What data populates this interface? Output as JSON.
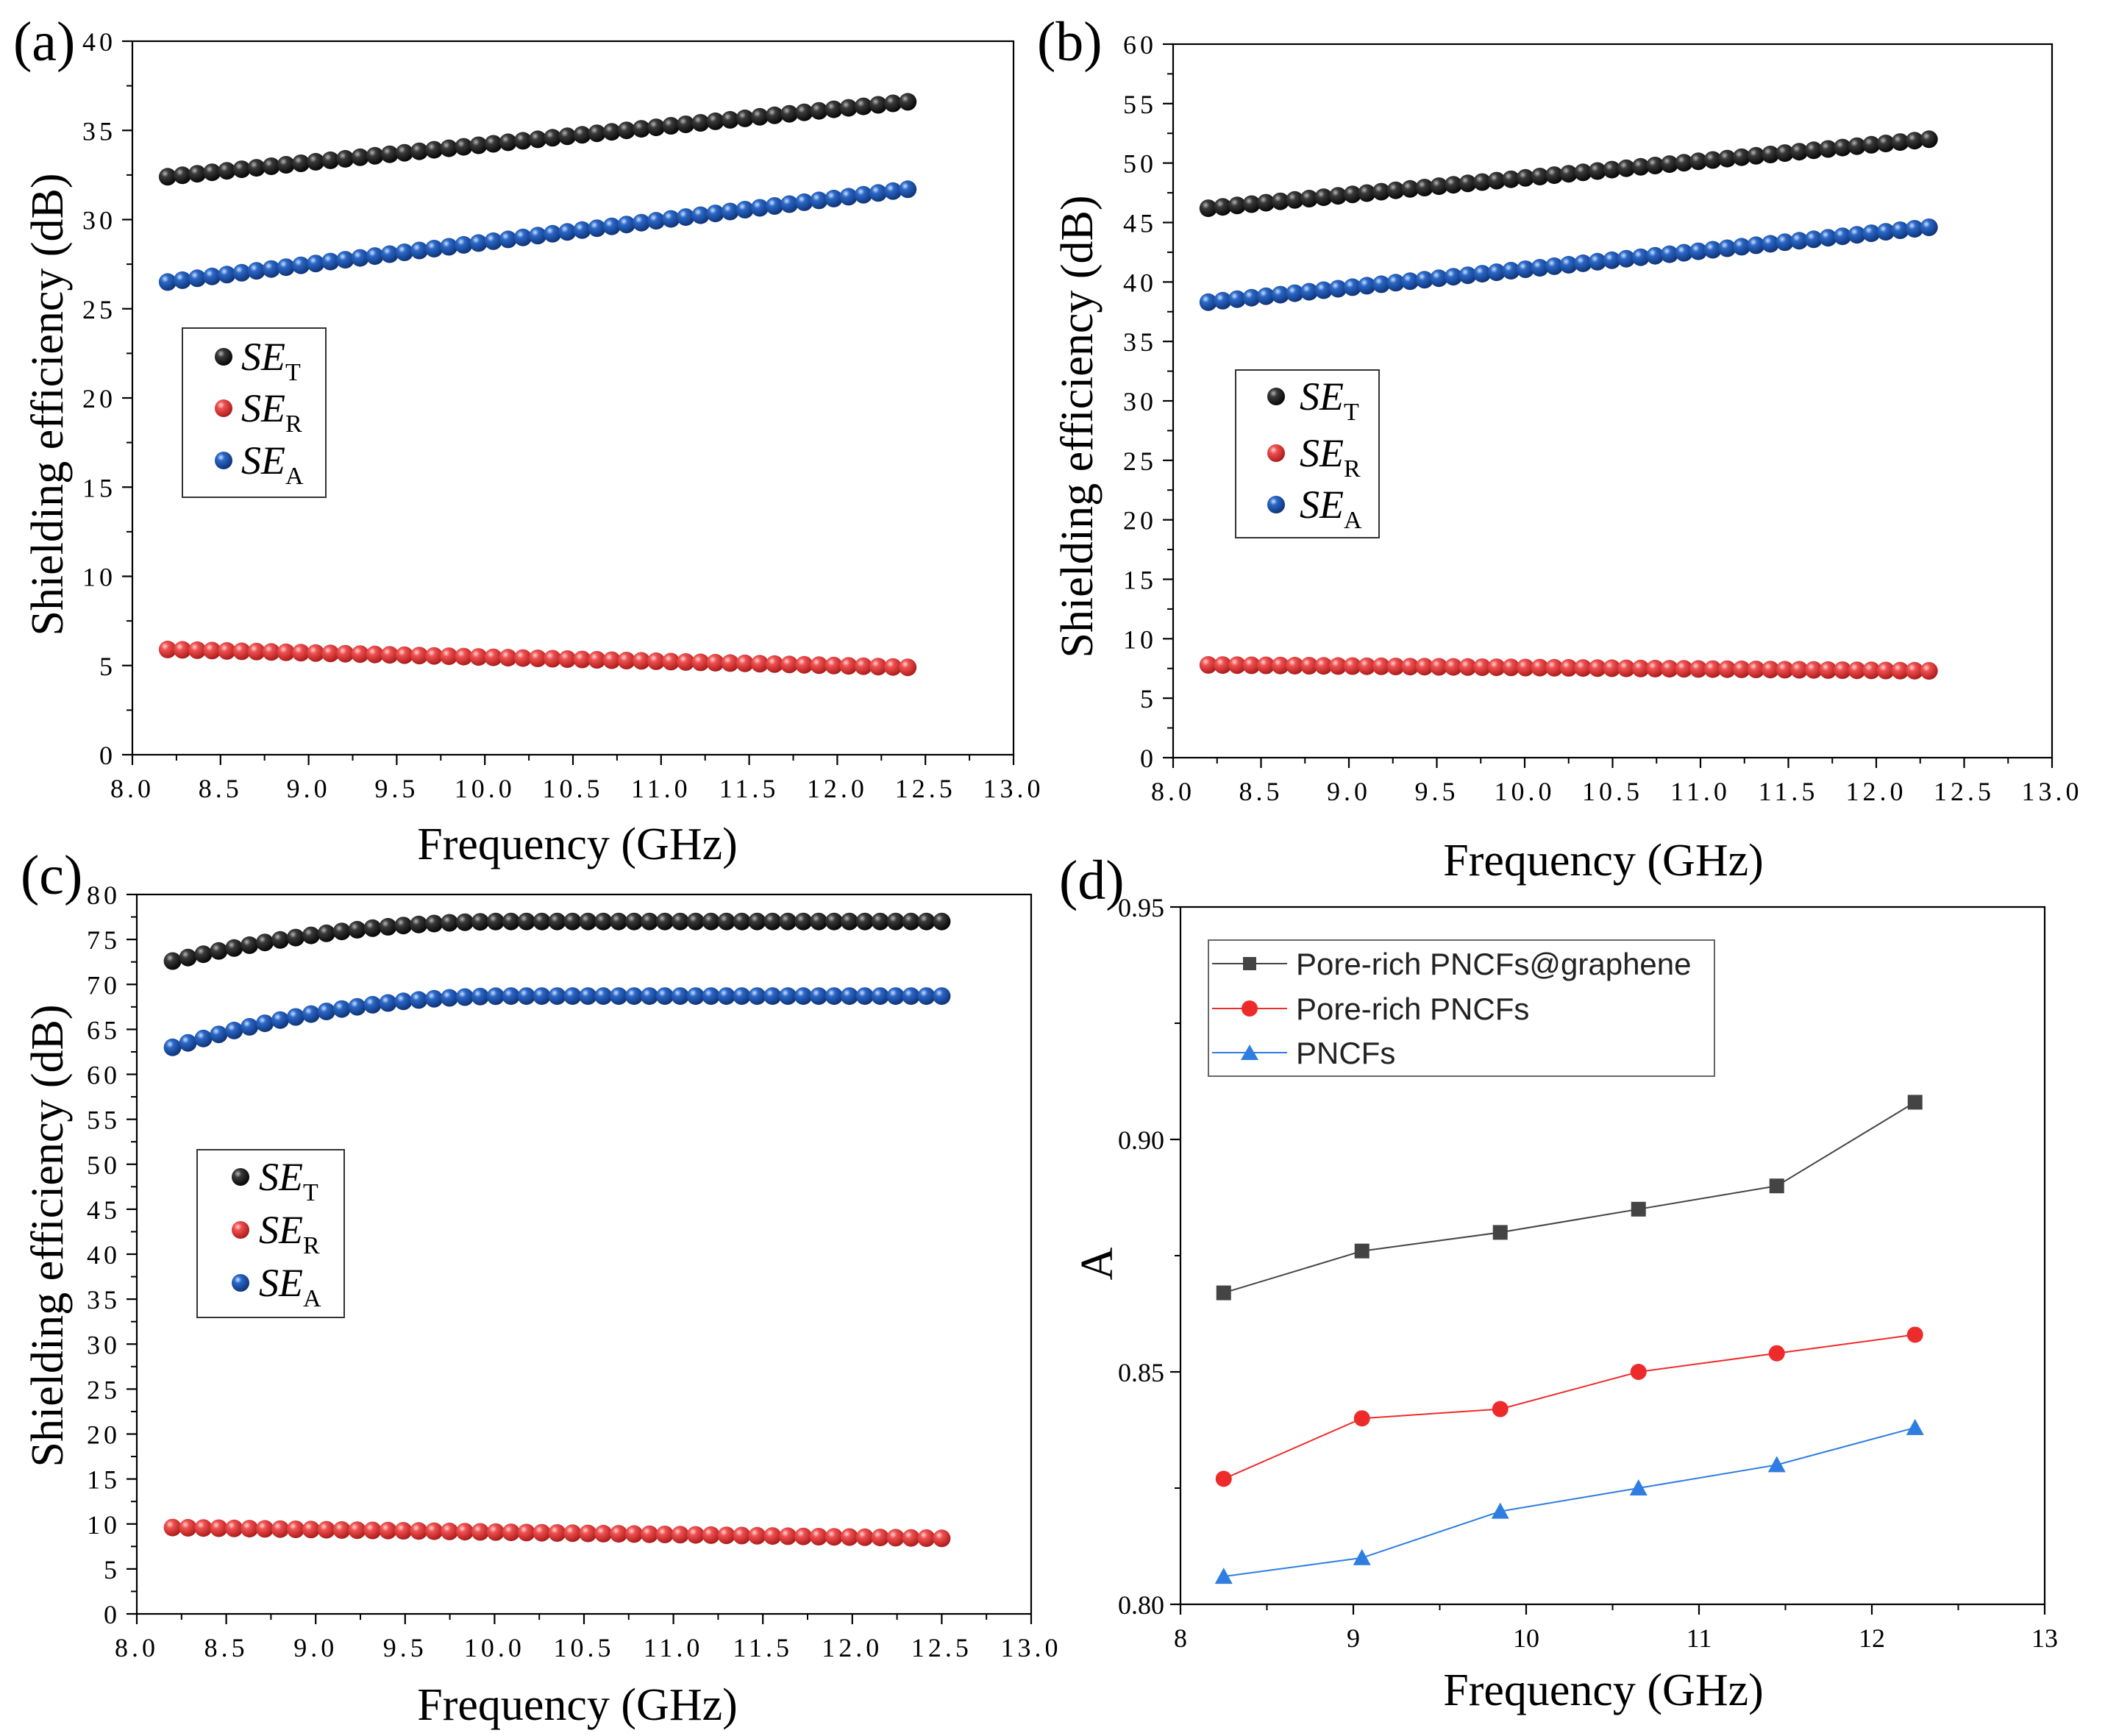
{
  "colors": {
    "se_t": "#1a1a1a",
    "se_r": "#e43c3c",
    "se_a": "#1e56b0",
    "pore_rich_graphene": "#444444",
    "pore_rich": "#ee2b2b",
    "pncfs": "#2f7de0"
  },
  "chart_data": [
    {
      "panel_label": "(a)",
      "type": "scatter",
      "xlabel": "Frequency (GHz)",
      "ylabel": "Shielding efficiency (dB)",
      "xlim": [
        8.0,
        13.0
      ],
      "ylim": [
        0,
        40
      ],
      "xticks": [
        "8.0",
        "8.5",
        "9.0",
        "9.5",
        "10.0",
        "10.5",
        "11.0",
        "11.5",
        "12.0",
        "12.5",
        "13.0"
      ],
      "yticks": [
        "0",
        "5",
        "10",
        "15",
        "20",
        "25",
        "30",
        "35",
        "40"
      ],
      "legend": {
        "position": "middle-left"
      },
      "series": [
        {
          "name": "SE",
          "sub": "T",
          "color_key": "se_t",
          "x_start": 8.2,
          "x_end": 12.4,
          "count": 51,
          "shape": "linear",
          "y_start": 32.4,
          "y_end": 36.6
        },
        {
          "name": "SE",
          "sub": "R",
          "color_key": "se_r",
          "x_start": 8.2,
          "x_end": 12.4,
          "count": 51,
          "shape": "linear",
          "y_start": 5.9,
          "y_end": 4.9
        },
        {
          "name": "SE",
          "sub": "A",
          "color_key": "se_a",
          "x_start": 8.2,
          "x_end": 12.4,
          "count": 51,
          "shape": "linear",
          "y_start": 26.5,
          "y_end": 31.7
        }
      ]
    },
    {
      "panel_label": "(b)",
      "type": "scatter",
      "xlabel": "Frequency (GHz)",
      "ylabel": "Shielding efficiency (dB)",
      "xlim": [
        8.0,
        13.0
      ],
      "ylim": [
        0,
        60
      ],
      "xticks": [
        "8.0",
        "8.5",
        "9.0",
        "9.5",
        "10.0",
        "10.5",
        "11.0",
        "11.5",
        "12.0",
        "12.5",
        "13.0"
      ],
      "yticks": [
        "0",
        "5",
        "10",
        "15",
        "20",
        "25",
        "30",
        "35",
        "40",
        "45",
        "50",
        "55",
        "60"
      ],
      "legend": {
        "position": "middle-left"
      },
      "series": [
        {
          "name": "SE",
          "sub": "T",
          "color_key": "se_t",
          "x_start": 8.2,
          "x_end": 12.3,
          "count": 51,
          "shape": "linear",
          "y_start": 46.2,
          "y_end": 52.0
        },
        {
          "name": "SE",
          "sub": "R",
          "color_key": "se_r",
          "x_start": 8.2,
          "x_end": 12.3,
          "count": 51,
          "shape": "linear",
          "y_start": 7.8,
          "y_end": 7.3
        },
        {
          "name": "SE",
          "sub": "A",
          "color_key": "se_a",
          "x_start": 8.2,
          "x_end": 12.3,
          "count": 51,
          "shape": "linear",
          "y_start": 38.3,
          "y_end": 44.6
        }
      ]
    },
    {
      "panel_label": "(c)",
      "type": "scatter",
      "xlabel": "Frequency (GHz)",
      "ylabel": "Shielding efficiency (dB)",
      "xlim": [
        8.0,
        13.0
      ],
      "ylim": [
        0,
        80
      ],
      "xticks": [
        "8.0",
        "8.5",
        "9.0",
        "9.5",
        "10.0",
        "10.5",
        "11.0",
        "11.5",
        "12.0",
        "12.5",
        "13.0"
      ],
      "yticks": [
        "0",
        "5",
        "10",
        "15",
        "20",
        "25",
        "30",
        "35",
        "40",
        "45",
        "50",
        "55",
        "60",
        "65",
        "70",
        "75",
        "80"
      ],
      "legend": {
        "position": "middle-left"
      },
      "series": [
        {
          "name": "SE",
          "sub": "T",
          "color_key": "se_t",
          "x_start": 8.2,
          "x_end": 12.5,
          "count": 51,
          "shape": "saturating",
          "y_start": 72.6,
          "y_end": 77.0,
          "peak_x": 10.1
        },
        {
          "name": "SE",
          "sub": "R",
          "color_key": "se_r",
          "x_start": 8.2,
          "x_end": 12.5,
          "count": 51,
          "shape": "linear",
          "y_start": 9.6,
          "y_end": 8.4
        },
        {
          "name": "SE",
          "sub": "A",
          "color_key": "se_a",
          "x_start": 8.2,
          "x_end": 12.5,
          "count": 51,
          "shape": "saturating",
          "y_start": 63.0,
          "y_end": 68.7,
          "peak_x": 10.1
        }
      ]
    },
    {
      "panel_label": "(d)",
      "type": "line",
      "xlabel": "Frequency (GHz)",
      "ylabel": "A",
      "xlim": [
        8,
        13
      ],
      "ylim": [
        0.8,
        0.95
      ],
      "xticks": [
        "8",
        "9",
        "10",
        "11",
        "12",
        "13"
      ],
      "yticks": [
        "0.80",
        "0.85",
        "0.90",
        "0.95"
      ],
      "legend": {
        "position": "top-left"
      },
      "x": [
        8.25,
        9.05,
        9.85,
        10.65,
        11.45,
        12.25
      ],
      "series": [
        {
          "name": "Pore-rich PNCFs@graphene",
          "color_key": "pore_rich_graphene",
          "marker": "square",
          "values": [
            0.867,
            0.876,
            0.88,
            0.885,
            0.89,
            0.908
          ]
        },
        {
          "name": "Pore-rich PNCFs",
          "color_key": "pore_rich",
          "marker": "circle",
          "values": [
            0.827,
            0.84,
            0.842,
            0.85,
            0.854,
            0.858
          ]
        },
        {
          "name": "PNCFs",
          "color_key": "pncfs",
          "marker": "triangle",
          "values": [
            0.806,
            0.81,
            0.82,
            0.825,
            0.83,
            0.838
          ]
        }
      ]
    }
  ]
}
